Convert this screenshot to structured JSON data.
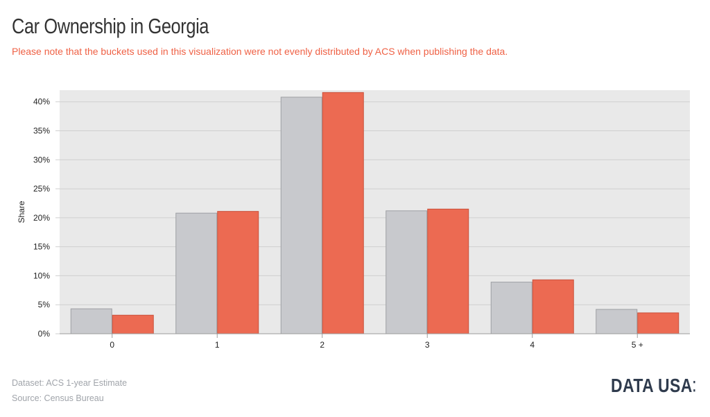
{
  "header": {
    "title": "Car Ownership in Georgia",
    "subtitle": "Please note that the buckets used in this visualization were not evenly distributed by ACS when publishing the data."
  },
  "footer": {
    "dataset": "Dataset: ACS 1-year Estimate",
    "source": "Source: Census Bureau"
  },
  "brand": {
    "logo_text": "DATA USA"
  },
  "colors": {
    "background_panel": "#e9e9e9",
    "series_gray": "#c8c9cd",
    "series_gray_stroke": "#9d9fa3",
    "series_orange": "#ec6a52",
    "series_orange_stroke": "#c9503a",
    "title": "#333333",
    "subtitle": "#ef6145",
    "footer": "#a0a4aa",
    "brand": "#2f3b4d"
  },
  "chart_data": {
    "type": "bar",
    "categories": [
      "0",
      "1",
      "2",
      "3",
      "4",
      "5 +"
    ],
    "series": [
      {
        "values": [
          4.3,
          20.8,
          40.8,
          21.2,
          8.9,
          4.2
        ]
      },
      {
        "values": [
          3.2,
          21.1,
          41.6,
          21.5,
          9.3,
          3.6
        ]
      }
    ],
    "ylabel": "Share",
    "xlabel": "",
    "ylim": [
      0,
      42
    ],
    "yticks": [
      0,
      5,
      10,
      15,
      20,
      25,
      30,
      35,
      40
    ],
    "ytick_labels": [
      "0%",
      "5%",
      "10%",
      "15%",
      "20%",
      "25%",
      "30%",
      "35%",
      "40%"
    ],
    "grid": true,
    "legend": "none"
  }
}
